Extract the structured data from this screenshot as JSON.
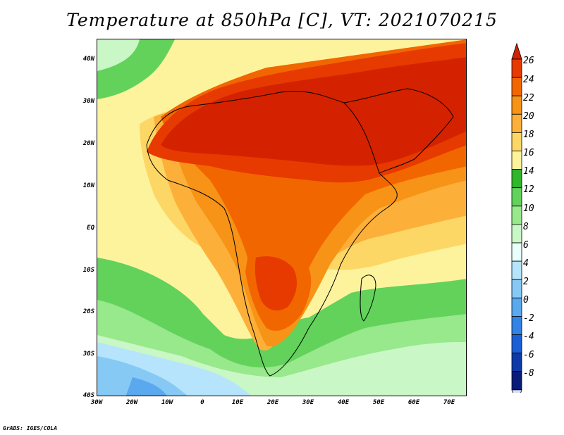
{
  "title": "Temperature at 850hPa [C], VT: 2021070215",
  "credit": "GrADS: IGES/COLA",
  "lat_labels": [
    "40N",
    "30N",
    "20N",
    "10N",
    "EQ",
    "10S",
    "20S",
    "30S",
    "40S"
  ],
  "lon_labels": [
    "30W",
    "20W",
    "10W",
    "0",
    "10E",
    "20E",
    "30E",
    "40E",
    "50E",
    "60E",
    "70E"
  ],
  "colorbar": {
    "labels": [
      "26",
      "24",
      "22",
      "20",
      "18",
      "16",
      "14",
      "12",
      "10",
      "8",
      "6",
      "4",
      "2",
      "0",
      "-2",
      "-4",
      "-6",
      "-8"
    ],
    "colors": [
      "#d42200",
      "#e63a00",
      "#f26600",
      "#f79316",
      "#fcb03a",
      "#fdd766",
      "#fef39d",
      "#2fb62b",
      "#62d25b",
      "#98e88c",
      "#c9f7c5",
      "#e8fffb",
      "#b5e4fc",
      "#86c9f5",
      "#5aa8ee",
      "#3383e6",
      "#1b5fd6",
      "#0d3aa8",
      "#091c7a",
      "#d7dcfa"
    ]
  },
  "map": {
    "region": "Africa, Arabia and adjacent oceans",
    "lon_range": [
      -30,
      75
    ],
    "lat_range": [
      -40,
      46
    ],
    "variable": "Temperature at 850hPa",
    "units": "C"
  }
}
